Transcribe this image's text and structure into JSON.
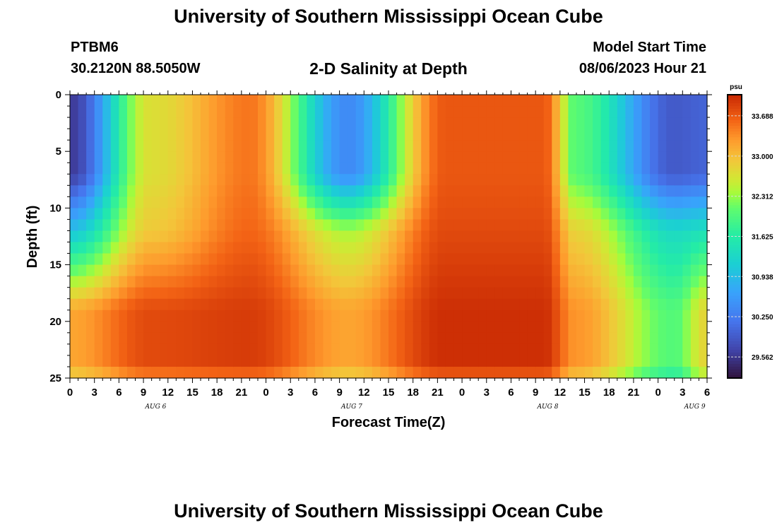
{
  "header": {
    "title": "University of Southern Mississippi Ocean Cube",
    "station_id": "PTBM6",
    "coords": "30.2120N  88.5050W",
    "subtitle": "2-D Salinity at Depth",
    "model_start_label": "Model Start Time",
    "model_start_value": "08/06/2023 Hour 21"
  },
  "footer": {
    "title": "University of Southern Mississippi Ocean Cube"
  },
  "chart_data": {
    "type": "heatmap",
    "title": "2-D Salinity at Depth",
    "xlabel": "Forecast Time(Z)",
    "ylabel": "Depth (ft)",
    "x_tick_labels": [
      "0",
      "3",
      "6",
      "9",
      "12",
      "15",
      "18",
      "21",
      "0",
      "3",
      "6",
      "9",
      "12",
      "15",
      "18",
      "21",
      "0",
      "3",
      "6",
      "9",
      "12",
      "15",
      "18",
      "21",
      "0",
      "3",
      "6"
    ],
    "day_labels": [
      {
        "label": "AUG 6",
        "hour": 10.5
      },
      {
        "label": "AUG 7",
        "hour": 34.5
      },
      {
        "label": "AUG 8",
        "hour": 58.5
      },
      {
        "label": "AUG 9",
        "hour": 76.5
      }
    ],
    "x_hours_range": [
      0,
      78
    ],
    "y_tick_labels": [
      "0",
      "5",
      "10",
      "15",
      "20",
      "25"
    ],
    "y_range_ft": [
      0,
      25
    ],
    "colorbar": {
      "unit": "psu",
      "range": [
        29.2,
        34.05
      ],
      "tick_labels": [
        "33.688",
        "33.000",
        "32.312",
        "31.625",
        "30.938",
        "30.250",
        "29.562"
      ],
      "tick_values": [
        33.688,
        33.0,
        32.312,
        31.625,
        30.938,
        30.25,
        29.562
      ]
    },
    "grid_resolution": {
      "time_steps": 78,
      "depth_levels": 25
    },
    "salinity_psu_by_time_depth": {
      "time_hours": [
        0,
        10,
        22,
        34,
        46,
        58,
        62,
        74,
        78
      ],
      "surface_0_8ft": [
        29.6,
        32.7,
        33.5,
        30.4,
        33.7,
        33.7,
        32.0,
        29.9,
        30.0
      ],
      "mid_10_14ft": [
        31.0,
        32.9,
        33.6,
        32.4,
        33.8,
        33.8,
        32.8,
        31.3,
        31.4
      ],
      "deep_18_24ft": [
        33.2,
        33.8,
        33.9,
        33.2,
        34.0,
        34.0,
        33.3,
        32.0,
        32.8
      ]
    }
  }
}
